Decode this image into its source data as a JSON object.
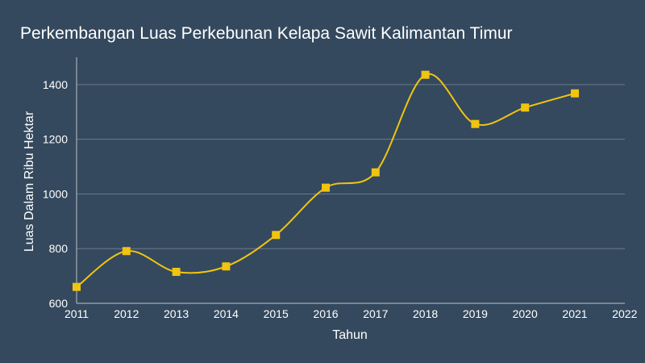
{
  "chart_data": {
    "type": "line",
    "title": "Perkembangan Luas Perkebunan Kelapa Sawit Kalimantan Timur",
    "xlabel": "Tahun",
    "ylabel": "Luas Dalam Ribu Hektar",
    "x": [
      2011,
      2012,
      2013,
      2014,
      2015,
      2016,
      2017,
      2018,
      2019,
      2020,
      2021
    ],
    "series": [
      {
        "values": [
          660,
          791,
          715,
          735,
          850,
          1023,
          1079,
          1436,
          1256,
          1316,
          1368
        ]
      }
    ],
    "xlim": [
      2011,
      2022
    ],
    "ylim": [
      600,
      1500
    ],
    "x_ticks": [
      2011,
      2012,
      2013,
      2014,
      2015,
      2016,
      2017,
      2018,
      2019,
      2020,
      2021,
      2022
    ],
    "y_ticks": [
      600,
      800,
      1000,
      1200,
      1400
    ],
    "grid": true,
    "curve": "smooth",
    "marker": "square",
    "colors": {
      "background": "#34495e",
      "line": "#f1c40f",
      "marker": "#f1c40f",
      "grid": "#6c7a89",
      "axis": "#bdc3c7",
      "text": "#ffffff"
    }
  }
}
